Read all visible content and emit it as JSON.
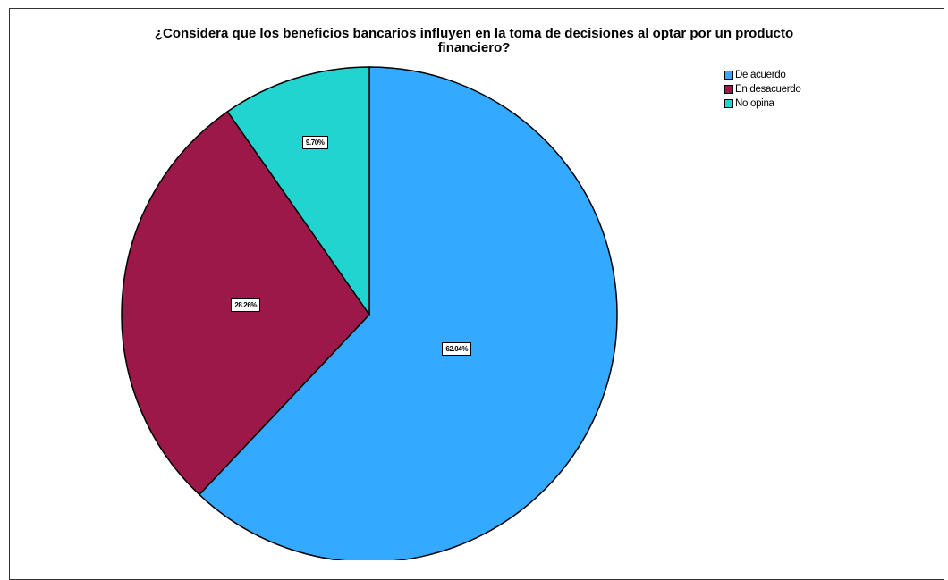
{
  "chart_data": {
    "type": "pie",
    "title_line1": "¿Considera que los beneficios bancarios influyen en la toma de decisiones al optar por un producto",
    "title_line2": "financiero?",
    "legend_position": "top-right",
    "series": [
      {
        "name": "De acuerdo",
        "value": 62.04,
        "label": "62.04%",
        "color": "#33aaff"
      },
      {
        "name": "En desacuerdo",
        "value": 28.26,
        "label": "28.26%",
        "color": "#9c1848"
      },
      {
        "name": "No opina",
        "value": 9.7,
        "label": "9.70%",
        "color": "#22d4d0"
      }
    ]
  }
}
